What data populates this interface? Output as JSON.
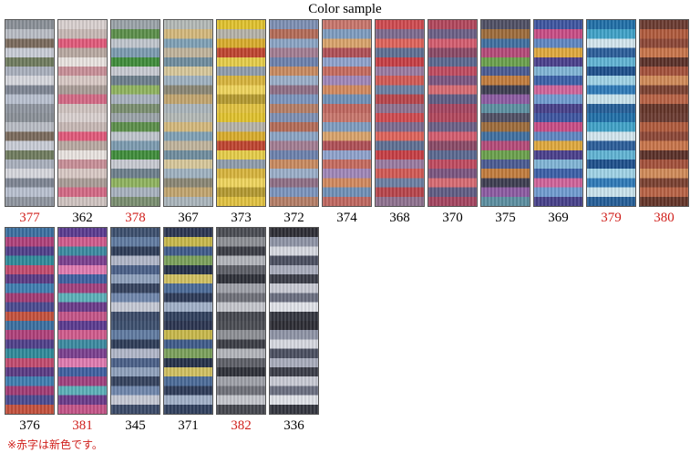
{
  "title": "Color sample",
  "note": "※赤字は新色です。",
  "colors": {
    "new_label": "#d0201c",
    "normal_label": "#000000"
  },
  "rows": [
    [
      {
        "code": "377",
        "is_new": true,
        "stripes": [
          "#8a9098",
          "#b8bcc4",
          "#7a6a5c",
          "#c8ccd6",
          "#6f7c5e",
          "#a9b0bd",
          "#d6d7dd",
          "#7e8593",
          "#b8c0cf",
          "#8f959f"
        ]
      },
      {
        "code": "362",
        "is_new": false,
        "stripes": [
          "#d9d0cf",
          "#c7b8b5",
          "#e2597a",
          "#b9a9a2",
          "#e9e3e0",
          "#c98f98",
          "#d8c8c4",
          "#a99c97",
          "#d46985",
          "#cfc3c0"
        ]
      },
      {
        "code": "378",
        "is_new": true,
        "stripes": [
          "#9aa3a8",
          "#5b8f4a",
          "#bfc5cd",
          "#7c9bb0",
          "#3f8d3a",
          "#c7cad1",
          "#6d7f8c",
          "#8fb35e",
          "#a7b1be",
          "#7a8e70"
        ]
      },
      {
        "code": "367",
        "is_new": false,
        "stripes": [
          "#b3b9b6",
          "#d4b87c",
          "#7fa1b6",
          "#c0b39b",
          "#6f8d9e",
          "#d7c79a",
          "#9eb1c0",
          "#8a8674",
          "#c2a56e",
          "#a9b4bb"
        ]
      },
      {
        "code": "373",
        "is_new": false,
        "stripes": [
          "#e1c22c",
          "#b5b2a8",
          "#d9ac2a",
          "#c0442f",
          "#e6cd48",
          "#8e9cab",
          "#d8b43c",
          "#efd45b",
          "#b49a30",
          "#e2c23f"
        ]
      },
      {
        "code": "372",
        "is_new": false,
        "stripes": [
          "#7d8fb3",
          "#b46b57",
          "#8aa4c4",
          "#a37d92",
          "#6c81ad",
          "#c98a5f",
          "#9aaec8",
          "#8f6e85",
          "#7b94bd",
          "#b57e66"
        ]
      },
      {
        "code": "374",
        "is_new": false,
        "stripes": [
          "#c8756b",
          "#7e9cc0",
          "#d9a36a",
          "#b04f56",
          "#8ea2cc",
          "#c66a5e",
          "#9f86b8",
          "#d2895d",
          "#6f90b7",
          "#c0675f"
        ]
      },
      {
        "code": "368",
        "is_new": false,
        "stripes": [
          "#cf4a4f",
          "#7d6a8f",
          "#e0635a",
          "#5e6f93",
          "#c73e44",
          "#9a7aa0",
          "#d25954",
          "#6b7fa3",
          "#b8444b",
          "#8e718f"
        ]
      },
      {
        "code": "370",
        "is_new": false,
        "stripes": [
          "#b2465c",
          "#6b5f86",
          "#d45c6e",
          "#8a4966",
          "#5a6890",
          "#c04a5f",
          "#7b5580",
          "#d76a72",
          "#5f5c84",
          "#a54460"
        ]
      },
      {
        "code": "375",
        "is_new": false,
        "stripes": [
          "#4f4f64",
          "#9d6b3a",
          "#3f6fa0",
          "#b54a78",
          "#6aa04c",
          "#4a5a92",
          "#c27c3c",
          "#3d3d50",
          "#8c5aa2",
          "#5b8fa0"
        ]
      },
      {
        "code": "369",
        "is_new": false,
        "stripes": [
          "#3d55a0",
          "#c94c85",
          "#5e86c2",
          "#e0a83c",
          "#4a3f8c",
          "#7fb4d6",
          "#3a5fa8",
          "#d0639a",
          "#6f9bd0",
          "#46408a"
        ]
      },
      {
        "code": "379",
        "is_new": true,
        "stripes": [
          "#1f6fa8",
          "#3fa2c8",
          "#d3e6ee",
          "#2a5d9a",
          "#5fb3d4",
          "#1c4f8c",
          "#9ed2e6",
          "#2e7ab8",
          "#c9e3ec",
          "#245e98"
        ]
      },
      {
        "code": "380",
        "is_new": true,
        "stripes": [
          "#6a3a30",
          "#b05a3c",
          "#8c4636",
          "#c8744a",
          "#5a3028",
          "#a4503a",
          "#d08a58",
          "#7a4030",
          "#b86244",
          "#643428"
        ]
      }
    ],
    [
      {
        "code": "376",
        "is_new": false,
        "stripes": [
          "#3a6fa0",
          "#b0407a",
          "#4f3f8a",
          "#2f8a9a",
          "#c24a6e",
          "#5a3a84",
          "#3e7db0",
          "#a23a74",
          "#4a4a90",
          "#c4503c"
        ]
      },
      {
        "code": "381",
        "is_new": true,
        "stripes": [
          "#5a3a90",
          "#d05a8c",
          "#3a8aa0",
          "#7b3f8f",
          "#e07ab0",
          "#3e5fa0",
          "#a0407e",
          "#5ab0b8",
          "#6a3a8a",
          "#c45488"
        ]
      },
      {
        "code": "345",
        "is_new": false,
        "stripes": [
          "#3c4f6e",
          "#5f7aa0",
          "#2e3c58",
          "#b0b6c8",
          "#4a6088",
          "#8ea0bc",
          "#34425e",
          "#6f86ac",
          "#c4c8d4",
          "#3a4a68"
        ]
      },
      {
        "code": "371",
        "is_new": false,
        "stripes": [
          "#2a3450",
          "#c8b84a",
          "#3e5a8a",
          "#7aa05a",
          "#243048",
          "#d0c060",
          "#4a6a98",
          "#2c3a58",
          "#a0b0c8",
          "#30405e"
        ]
      },
      {
        "code": "382",
        "is_new": true,
        "stripes": [
          "#4a4c52",
          "#8c8e94",
          "#3a3c44",
          "#b2b4ba",
          "#5c5e66",
          "#2e3038",
          "#9ea0a8",
          "#6e7078",
          "#c4c6cc",
          "#44464e"
        ]
      },
      {
        "code": "336",
        "is_new": false,
        "stripes": [
          "#2c2c34",
          "#8e94a6",
          "#d6d8e0",
          "#4a4e60",
          "#a8acbc",
          "#3a3c48",
          "#c8cad4",
          "#6a6e80",
          "#e0e2e8",
          "#33353f"
        ]
      }
    ]
  ]
}
